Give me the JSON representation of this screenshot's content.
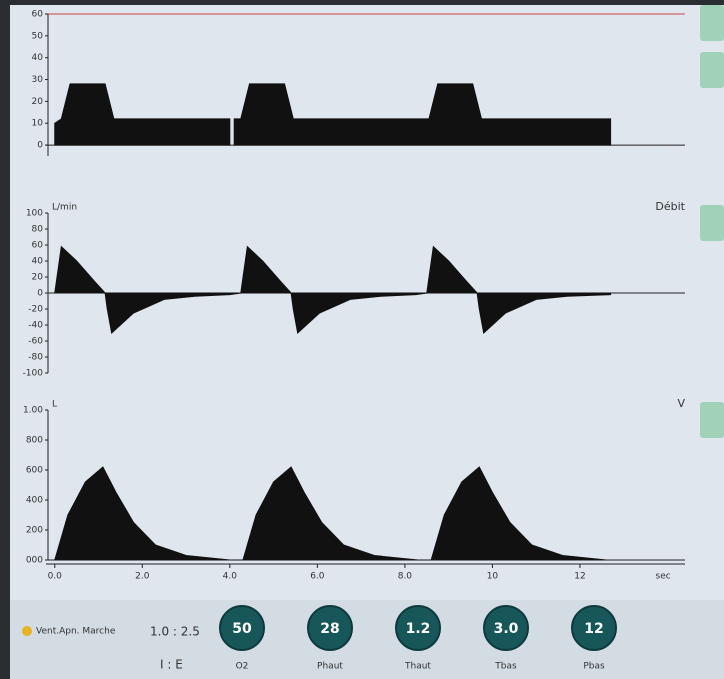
{
  "charts": [
    {
      "type": "area",
      "x": [
        0,
        0.15,
        0.35,
        1.15,
        1.35,
        4.0,
        4.05,
        4.1,
        4.25,
        4.45,
        5.25,
        5.45,
        8.4,
        8.55,
        8.75,
        9.55,
        9.75,
        12.7
      ],
      "values": [
        10,
        12,
        28,
        28,
        12,
        12,
        null,
        12,
        12,
        28,
        28,
        12,
        12,
        12,
        28,
        28,
        12,
        12
      ],
      "ylim": [
        -5,
        60
      ],
      "yticks": [
        0,
        10,
        20,
        30,
        40,
        50,
        60
      ]
    },
    {
      "type": "area",
      "unit_label": "L/min",
      "name": "Débit",
      "x": [
        0,
        0.15,
        0.5,
        0.9,
        1.15,
        1.2,
        1.3,
        1.8,
        2.5,
        3.2,
        4.0,
        4.25,
        4.4,
        4.75,
        5.15,
        5.4,
        5.45,
        5.55,
        6.05,
        6.75,
        7.45,
        8.25,
        8.5,
        8.65,
        9.0,
        9.4,
        9.65,
        9.7,
        9.8,
        10.3,
        11.0,
        11.7,
        12.7
      ],
      "values": [
        0,
        58,
        40,
        15,
        0,
        -20,
        -50,
        -25,
        -8,
        -4,
        -2,
        0,
        58,
        40,
        15,
        0,
        -20,
        -50,
        -25,
        -8,
        -4,
        -2,
        0,
        58,
        40,
        15,
        0,
        -20,
        -50,
        -25,
        -8,
        -4,
        -2
      ],
      "ylim": [
        -100,
        100
      ],
      "yticks": [
        -100,
        -80,
        -60,
        -40,
        -20,
        0,
        20,
        40,
        60,
        80,
        100
      ]
    },
    {
      "type": "area",
      "unit_label": "L",
      "name": "V",
      "x": [
        0,
        0.3,
        0.7,
        1.1,
        1.4,
        1.8,
        2.3,
        3.0,
        4.0,
        4.3,
        4.6,
        5.0,
        5.4,
        5.7,
        6.1,
        6.6,
        7.3,
        8.3,
        8.6,
        8.9,
        9.3,
        9.7,
        10.0,
        10.4,
        10.9,
        11.6,
        12.6
      ],
      "values": [
        0,
        300,
        520,
        620,
        450,
        250,
        100,
        30,
        0,
        0,
        300,
        520,
        620,
        450,
        250,
        100,
        30,
        0,
        0,
        300,
        520,
        620,
        450,
        250,
        100,
        30,
        0
      ],
      "ylim": [
        0,
        1000
      ],
      "yticks": [
        {
          "value": 0,
          "label": "000"
        },
        200,
        400,
        600,
        800,
        {
          "value": 1000,
          "label": "1.00"
        }
      ],
      "xlim": [
        -0.2,
        14.4
      ],
      "xticks": [
        {
          "value": 0,
          "label": "0.0"
        },
        {
          "value": 2,
          "label": "2.0"
        },
        {
          "value": 4,
          "label": "4.0"
        },
        {
          "value": 6,
          "label": "6.0"
        },
        {
          "value": 8,
          "label": "8.0"
        },
        10,
        12
      ],
      "x_unit": "sec"
    }
  ],
  "footer": {
    "status": "Vent.Apn. Marche",
    "ratio": "1.0 : 2.5",
    "ratio_label": "I : E",
    "settings": [
      {
        "value": "50",
        "label": "O2"
      },
      {
        "value": "28",
        "label": "Phaut"
      },
      {
        "value": "1.2",
        "label": "Thaut"
      },
      {
        "value": "3.0",
        "label": "Tbas"
      },
      {
        "value": "12",
        "label": "Pbas"
      }
    ]
  }
}
